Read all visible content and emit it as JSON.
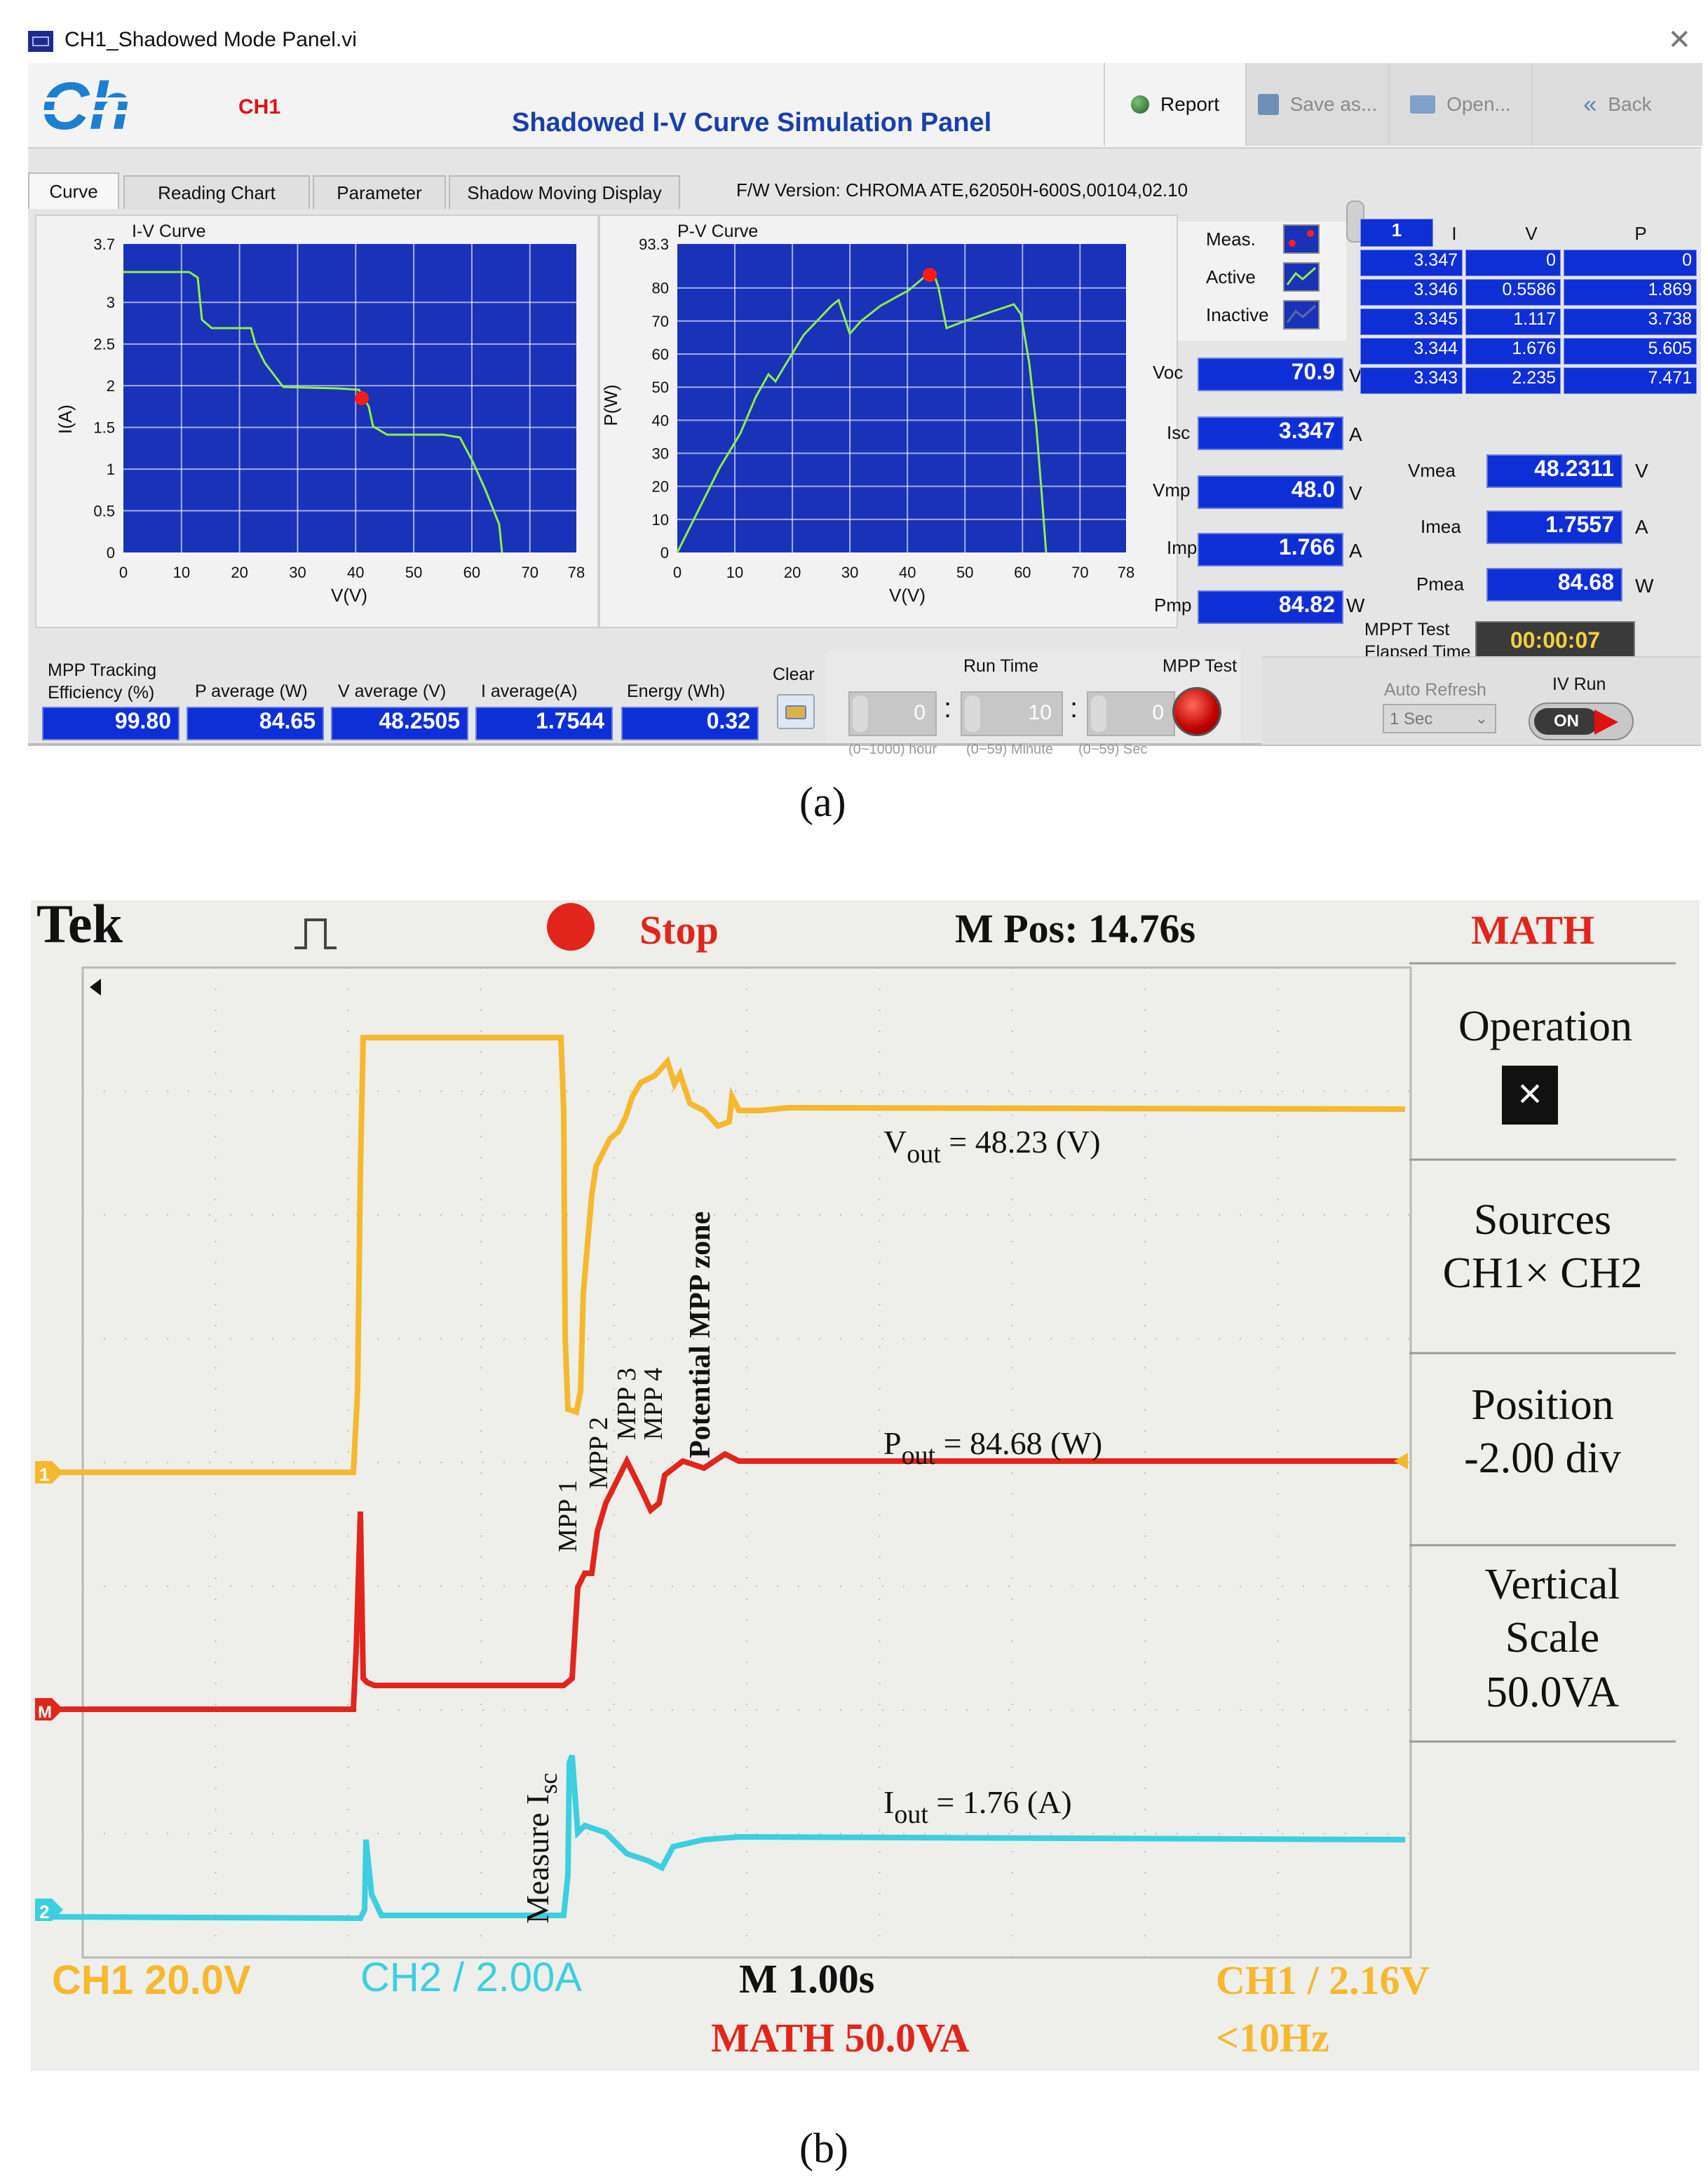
{
  "panel_a": {
    "window_title": "CH1_Shadowed Mode Panel.vi",
    "channel": "CH1",
    "title": "Shadowed I-V Curve Simulation Panel",
    "buttons": {
      "report": "Report",
      "save": "Save as...",
      "open": "Open...",
      "back": "Back"
    },
    "tabs": [
      "Curve",
      "Reading Chart",
      "Parameter",
      "Shadow Moving Display"
    ],
    "firmware": "F/W Version:  CHROMA ATE,62050H-600S,00104,02.10",
    "iv_chart": {
      "title": "I-V Curve",
      "ylabel": "I(A)",
      "xlabel": "V(V)",
      "yticks": [
        "3.7",
        "3",
        "2.5",
        "2",
        "1.5",
        "1",
        "0.5",
        "0"
      ],
      "xticks": [
        "0",
        "10",
        "20",
        "30",
        "40",
        "50",
        "60",
        "70",
        "78"
      ]
    },
    "pv_chart": {
      "title": "P-V Curve",
      "ylabel": "P(W)",
      "xlabel": "V(V)",
      "yticks": [
        "93.3",
        "80",
        "70",
        "60",
        "50",
        "40",
        "30",
        "20",
        "10",
        "0"
      ],
      "xticks": [
        "0",
        "10",
        "20",
        "30",
        "40",
        "50",
        "60",
        "70",
        "78"
      ]
    },
    "legend": {
      "meas": "Meas.",
      "active": "Active",
      "inactive": "Inactive"
    },
    "params": [
      {
        "label": "Voc",
        "value": "70.9",
        "unit": "V"
      },
      {
        "label": "Isc",
        "value": "3.347",
        "unit": "A"
      },
      {
        "label": "Vmp",
        "value": "48.0",
        "unit": "V"
      },
      {
        "label": "Imp",
        "value": "1.766",
        "unit": "A"
      },
      {
        "label": "Pmp",
        "value": "84.82",
        "unit": "W"
      }
    ],
    "table": {
      "index": "1",
      "headers": [
        "I",
        "V",
        "P"
      ],
      "rows": [
        [
          "3.347",
          "0",
          "0"
        ],
        [
          "3.346",
          "0.5586",
          "1.869"
        ],
        [
          "3.345",
          "1.117",
          "3.738"
        ],
        [
          "3.344",
          "1.676",
          "5.605"
        ],
        [
          "3.343",
          "2.235",
          "7.471"
        ]
      ]
    },
    "meas": [
      {
        "label": "Vmea",
        "value": "48.2311",
        "unit": "V"
      },
      {
        "label": "Imea",
        "value": "1.7557",
        "unit": "A"
      },
      {
        "label": "Pmea",
        "value": "84.68",
        "unit": "W"
      }
    ],
    "mppt_label_1": "MPPT Test",
    "mppt_label_2": "Elapsed Time",
    "elapsed": "00:00:07",
    "summary": [
      {
        "label": "MPP Tracking\nEfficiency (%)",
        "value": "99.80"
      },
      {
        "label": "P average  (W)",
        "value": "84.65"
      },
      {
        "label": "V average (V)",
        "value": "48.2505"
      },
      {
        "label": "I average(A)",
        "value": "1.7544"
      },
      {
        "label": "Energy  (Wh)",
        "value": "0.32"
      }
    ],
    "clear": "Clear",
    "run_time": "Run Time",
    "run": [
      {
        "value": "0",
        "hint": "(0~1000) hour"
      },
      {
        "value": "10",
        "hint": "(0~59) Minute"
      },
      {
        "value": "0",
        "hint": "(0~59) Sec"
      }
    ],
    "mpp_test": "MPP Test",
    "auto_refresh": "Auto Refresh",
    "refresh_value": "1 Sec",
    "iv_run": "IV Run",
    "on": "ON",
    "caption": "(a)"
  },
  "panel_b": {
    "brand": "Tek",
    "state": "Stop",
    "m_pos": "M Pos: 14.76s",
    "math": "MATH",
    "menu": [
      "Operation",
      "Sources",
      "CH1× CH2",
      "Position",
      "-2.00 div",
      "Vertical",
      "Scale",
      "50.0VA"
    ],
    "times_symbol": "×",
    "annotations": {
      "vout_main": "V",
      "vout_sub": "out",
      "vout_val": " = 48.23 (V)",
      "pout_main": "P",
      "pout_sub": "out",
      "pout_val": " = 84.68 (W)",
      "iout_main": "I",
      "iout_sub": "out",
      "iout_val": " = 1.76 (A)",
      "mpp1": "MPP 1",
      "mpp2": "MPP 2",
      "mpp3": "MPP 3",
      "mpp4": "MPP 4",
      "potential": "Potential MPP zone",
      "measure_main": "Measure I",
      "measure_sub": "sc"
    },
    "markers": {
      "ch1": "1",
      "ch2": "2",
      "math": "M"
    },
    "footer": {
      "ch1": "CH1  20.0V",
      "ch2": "CH2 / 2.00A",
      "time": "M 1.00s",
      "math": "MATH 50.0VA",
      "trigger": "CH1 / 2.16V",
      "freq": "<10Hz"
    },
    "colors": {
      "ch1": "#f5b82e",
      "ch2": "#3ccfdf",
      "math": "#e0261c"
    },
    "caption": "(b)"
  }
}
